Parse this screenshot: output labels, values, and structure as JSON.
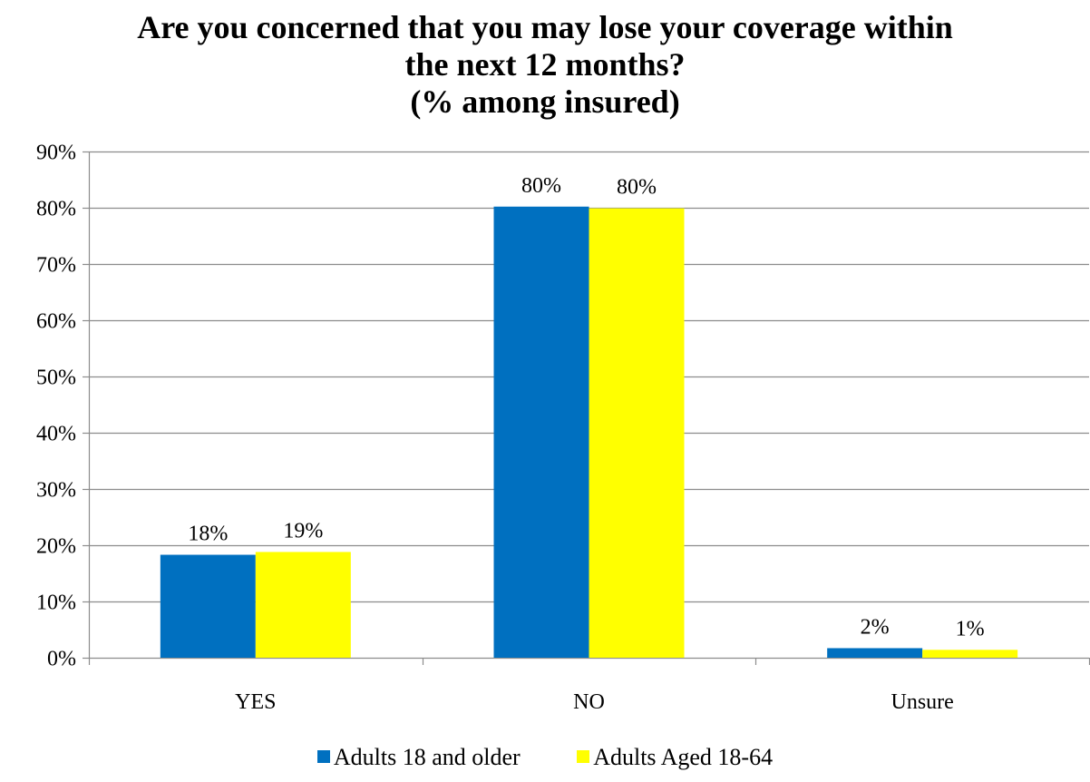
{
  "chart_data": {
    "type": "bar",
    "title_lines": [
      "Are you concerned that you may lose your coverage within",
      "the next 12 months?",
      "(% among insured)"
    ],
    "categories": [
      "YES",
      "NO",
      "Unsure"
    ],
    "series": [
      {
        "name": "Adults 18 and older",
        "color": "#0070C0",
        "values": [
          18.3,
          80.2,
          1.7
        ],
        "labels": [
          "18%",
          "80%",
          "2%"
        ]
      },
      {
        "name": "Adults Aged 18-64",
        "color": "#FFFF00",
        "values": [
          18.8,
          79.9,
          1.4
        ],
        "labels": [
          "19%",
          "80%",
          "1%"
        ]
      }
    ],
    "ylim": [
      0,
      90
    ],
    "y_ticks": [
      0,
      10,
      20,
      30,
      40,
      50,
      60,
      70,
      80,
      90
    ],
    "y_tick_labels": [
      "0%",
      "10%",
      "20%",
      "30%",
      "40%",
      "50%",
      "60%",
      "70%",
      "80%",
      "90%"
    ],
    "grid": true,
    "legend_position": "bottom"
  }
}
